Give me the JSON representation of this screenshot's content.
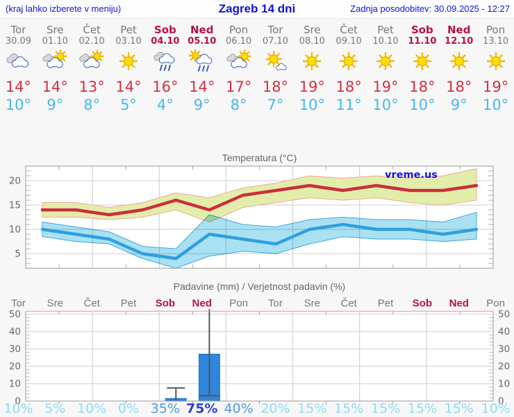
{
  "header": {
    "left_note": "(kraj lahko izberete v meniju)",
    "title": "Zagreb 14 dni",
    "updated": "Zadnja posodobitev: 30.09.2025 - 12:27"
  },
  "days": [
    {
      "name": "Tor",
      "date": "30.09",
      "weekend": false,
      "icon": "cloudy",
      "tmax": "14°",
      "tmin": "10°"
    },
    {
      "name": "Sre",
      "date": "01.10",
      "weekend": false,
      "icon": "sun-cloud",
      "tmax": "14°",
      "tmin": "9°"
    },
    {
      "name": "Čet",
      "date": "02.10",
      "weekend": false,
      "icon": "sun-cloud",
      "tmax": "13°",
      "tmin": "8°"
    },
    {
      "name": "Pet",
      "date": "03.10",
      "weekend": false,
      "icon": "sunny",
      "tmax": "14°",
      "tmin": "5°"
    },
    {
      "name": "Sob",
      "date": "04.10",
      "weekend": true,
      "icon": "rain",
      "tmax": "16°",
      "tmin": "4°"
    },
    {
      "name": "Ned",
      "date": "05.10",
      "weekend": true,
      "icon": "sun-rain",
      "tmax": "14°",
      "tmin": "9°"
    },
    {
      "name": "Pon",
      "date": "06.10",
      "weekend": false,
      "icon": "sun-cloud",
      "tmax": "17°",
      "tmin": "8°"
    },
    {
      "name": "Tor",
      "date": "07.10",
      "weekend": false,
      "icon": "sun-small-cloud",
      "tmax": "18°",
      "tmin": "7°"
    },
    {
      "name": "Sre",
      "date": "08.10",
      "weekend": false,
      "icon": "sunny",
      "tmax": "19°",
      "tmin": "10°"
    },
    {
      "name": "Čet",
      "date": "09.10",
      "weekend": false,
      "icon": "sunny",
      "tmax": "18°",
      "tmin": "11°"
    },
    {
      "name": "Pet",
      "date": "10.10",
      "weekend": false,
      "icon": "sunny",
      "tmax": "19°",
      "tmin": "10°"
    },
    {
      "name": "Sob",
      "date": "11.10",
      "weekend": true,
      "icon": "sunny",
      "tmax": "18°",
      "tmin": "10°"
    },
    {
      "name": "Ned",
      "date": "12.10",
      "weekend": true,
      "icon": "sunny",
      "tmax": "18°",
      "tmin": "9°"
    },
    {
      "name": "Pon",
      "date": "13.10",
      "weekend": false,
      "icon": "sunny",
      "tmax": "19°",
      "tmin": "10°"
    }
  ],
  "chart_data": [
    {
      "type": "line",
      "title": "Temperatura (°C)",
      "watermark": "vreme.us",
      "categories": [
        "30.09",
        "01.10",
        "02.10",
        "03.10",
        "04.10",
        "05.10",
        "06.10",
        "07.10",
        "08.10",
        "09.10",
        "10.10",
        "11.10",
        "12.10",
        "13.10"
      ],
      "ylim": [
        2,
        23
      ],
      "yticks": [
        5,
        10,
        15,
        20
      ],
      "grid": true,
      "series": [
        {
          "name": "max temperature",
          "color": "#cb2e3b",
          "band_color": "#e3edaa",
          "band_edge_color": "#f0a890",
          "values": [
            14,
            14,
            13,
            14,
            16,
            14,
            17,
            18,
            19,
            18,
            19,
            18,
            18,
            19
          ],
          "band_high": [
            15.5,
            15.5,
            14.5,
            15.5,
            17.5,
            16.5,
            18.5,
            19.5,
            21,
            20.5,
            21,
            20.5,
            21,
            22.5
          ],
          "band_low": [
            12.5,
            12.5,
            12,
            12.5,
            14,
            11.5,
            14.5,
            15.5,
            16.5,
            16,
            16.5,
            15.5,
            15,
            16
          ]
        },
        {
          "name": "min temperature",
          "color": "#2f9fdf",
          "band_color": "#a9e1f3",
          "band_edge_color": "#3fa6dd",
          "values": [
            10,
            9,
            8,
            5,
            4,
            9,
            8,
            7,
            10,
            11,
            10,
            10,
            9,
            10
          ],
          "band_high": [
            11.5,
            10.5,
            9.5,
            6.5,
            6,
            13,
            11,
            10.5,
            12,
            12.5,
            12,
            12,
            11.5,
            13.5
          ],
          "band_low": [
            8.5,
            7.5,
            7,
            4,
            2,
            4.5,
            5.5,
            5,
            7,
            8.5,
            8,
            8,
            7.5,
            8
          ]
        }
      ]
    },
    {
      "type": "bar",
      "title": "Padavine (mm) / Verjetnost padavin (%)",
      "day_labels": [
        "Tor",
        "Sre",
        "Čet",
        "Pet",
        "Sob",
        "Ned",
        "Pon",
        "Tor",
        "Sre",
        "Čet",
        "Pet",
        "Sob",
        "Ned",
        "Pon"
      ],
      "ylim": [
        0,
        52
      ],
      "yticks": [
        0,
        10,
        20,
        30,
        40,
        50
      ],
      "grid": true,
      "bar_color": "#2e86dd",
      "whisker_color": "#555555",
      "values": [
        0,
        0,
        0,
        0,
        1.5,
        27,
        0,
        0,
        0,
        0,
        0,
        0,
        0,
        0
      ],
      "whisker_low": [
        0,
        0,
        0,
        0,
        0,
        3,
        0,
        0,
        0,
        0,
        0,
        0,
        0,
        0
      ],
      "whisker_high": [
        0,
        0,
        0,
        0,
        7.5,
        53,
        0,
        0,
        0,
        0,
        0,
        0,
        0,
        0
      ],
      "probabilities": [
        10,
        5,
        10,
        0,
        35,
        75,
        40,
        20,
        15,
        15,
        15,
        15,
        15,
        10
      ]
    }
  ],
  "colors": {
    "header_blue": "#1111d8",
    "weekend_red": "#b5104d",
    "weekday_gray": "#777777",
    "tmax_red": "#d42f3f",
    "tmin_blue": "#45b8ec",
    "prob_low": "#8edbf7",
    "prob_mid": "#4b9be2",
    "prob_high": "#2e3fd4"
  }
}
